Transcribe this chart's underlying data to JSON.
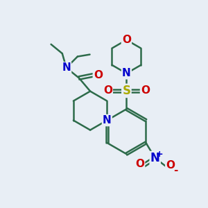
{
  "bg_color": "#e8eef5",
  "bond_color": "#2d6b4a",
  "bond_width": 1.8,
  "atom_colors": {
    "N": "#0000cc",
    "O": "#cc0000",
    "S": "#aaaa00",
    "C": "#2d6b4a"
  },
  "figsize": [
    3.0,
    3.0
  ],
  "dpi": 100,
  "xlim": [
    0,
    10
  ],
  "ylim": [
    0,
    10
  ]
}
